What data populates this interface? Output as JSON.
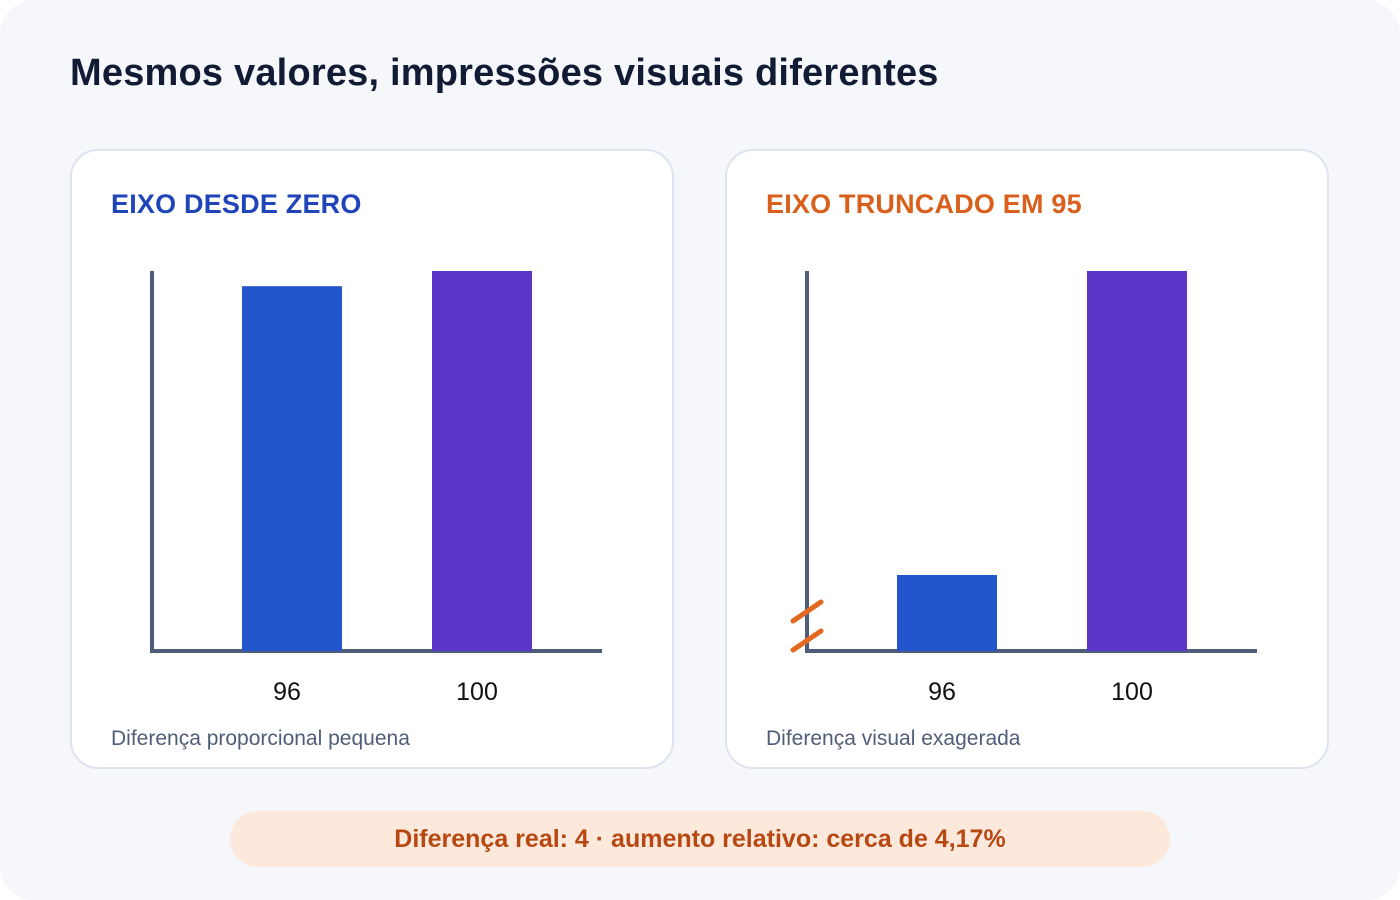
{
  "title": "Mesmos valores, impressões visuais diferentes",
  "footer": "Diferença real: 4 · aumento relativo: cerca de 4,17%",
  "colors": {
    "series_a": "#2356cc",
    "series_b": "#5b36c9",
    "axis": "#4f5e78",
    "break_mark": "#e2691f",
    "heading_left": "#1f45b8",
    "heading_right": "#d9601c"
  },
  "chart_data": [
    {
      "type": "bar",
      "title": "EIXO DESDE ZERO",
      "caption": "Diferença proporcional pequena",
      "categories": [
        "96",
        "100"
      ],
      "values": [
        96,
        100
      ],
      "bar_colors": [
        "#2356cc",
        "#5b36c9"
      ],
      "ylim": [
        0,
        100
      ],
      "axis_break": false,
      "grid": false,
      "xlabel": "",
      "ylabel": ""
    },
    {
      "type": "bar",
      "title": "EIXO TRUNCADO EM 95",
      "caption": "Diferença visual exagerada",
      "categories": [
        "96",
        "100"
      ],
      "values": [
        96,
        100
      ],
      "bar_colors": [
        "#2356cc",
        "#5b36c9"
      ],
      "ylim": [
        95,
        100
      ],
      "axis_break": true,
      "grid": false,
      "xlabel": "",
      "ylabel": ""
    }
  ]
}
